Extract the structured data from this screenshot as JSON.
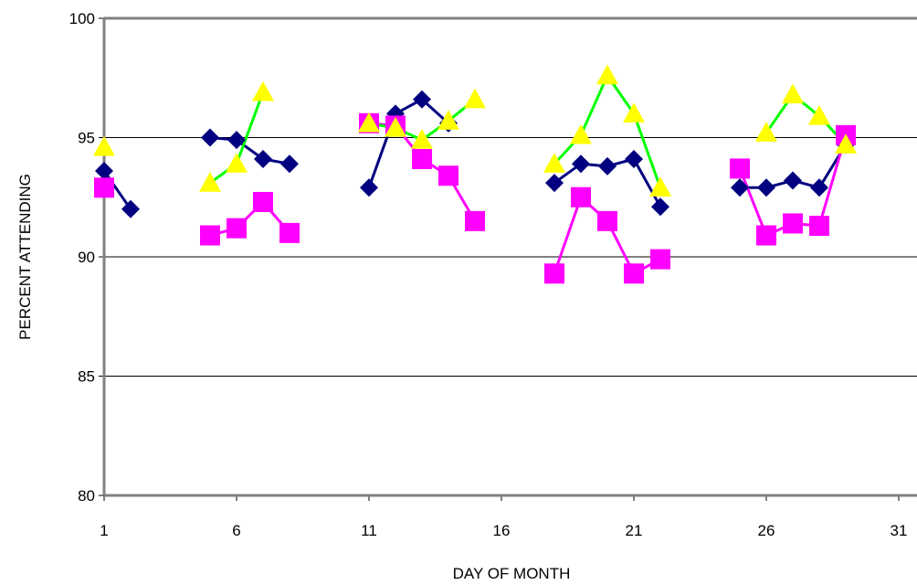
{
  "chart_data": {
    "type": "line",
    "title": "",
    "xlabel": "DAY OF MONTH",
    "ylabel": "PERCENT ATTENDING",
    "xlim": [
      1,
      31
    ],
    "ylim": [
      80,
      100
    ],
    "x_ticks": [
      "1",
      "6",
      "11",
      "16",
      "21",
      "26",
      "31"
    ],
    "y_ticks": [
      "80",
      "85",
      "90",
      "95",
      "100"
    ],
    "grid": "horizontal",
    "legend": "none",
    "series": [
      {
        "color": "#000080",
        "line_color": "#000080",
        "marker": "diamond",
        "segments": [
          [
            [
              1,
              93.6
            ],
            [
              2,
              92.0
            ]
          ],
          [
            [
              5,
              95.0
            ],
            [
              6,
              94.9
            ],
            [
              7,
              94.1
            ],
            [
              8,
              93.9
            ]
          ],
          [
            [
              11,
              92.9
            ],
            [
              12,
              96.0
            ],
            [
              13,
              96.6
            ],
            [
              14,
              95.6
            ]
          ],
          [
            [
              18,
              93.1
            ],
            [
              19,
              93.9
            ],
            [
              20,
              93.8
            ],
            [
              21,
              94.1
            ],
            [
              22,
              92.1
            ]
          ],
          [
            [
              25,
              92.9
            ],
            [
              26,
              92.9
            ],
            [
              27,
              93.2
            ],
            [
              28,
              92.9
            ],
            [
              29,
              94.7
            ]
          ]
        ]
      },
      {
        "color": "#ff00ff",
        "line_color": "#ff00ff",
        "marker": "square",
        "segments": [
          [
            [
              1,
              92.9
            ]
          ],
          [
            [
              5,
              90.9
            ],
            [
              6,
              91.2
            ],
            [
              7,
              92.3
            ],
            [
              8,
              91.0
            ]
          ],
          [
            [
              11,
              95.6
            ],
            [
              12,
              95.5
            ],
            [
              13,
              94.1
            ],
            [
              14,
              93.4
            ],
            [
              15,
              91.5
            ]
          ],
          [
            [
              18,
              89.3
            ],
            [
              19,
              92.5
            ],
            [
              20,
              91.5
            ],
            [
              21,
              89.3
            ],
            [
              22,
              89.9
            ]
          ],
          [
            [
              25,
              93.7
            ],
            [
              26,
              90.9
            ],
            [
              27,
              91.4
            ],
            [
              28,
              91.3
            ],
            [
              29,
              95.1
            ]
          ]
        ]
      },
      {
        "color": "#ffff00",
        "line_color": "#00ff00",
        "marker": "triangle",
        "segments": [
          [
            [
              1,
              94.6
            ]
          ],
          [
            [
              5,
              93.1
            ],
            [
              6,
              93.9
            ],
            [
              7,
              96.9
            ]
          ],
          [
            [
              11,
              95.6
            ],
            [
              12,
              95.4
            ],
            [
              13,
              94.9
            ],
            [
              14,
              95.7
            ],
            [
              15,
              96.6
            ]
          ],
          [
            [
              18,
              93.9
            ],
            [
              19,
              95.1
            ],
            [
              20,
              97.6
            ],
            [
              21,
              96.0
            ],
            [
              22,
              92.9
            ]
          ],
          [
            [
              26,
              95.2
            ],
            [
              27,
              96.8
            ],
            [
              28,
              95.9
            ],
            [
              29,
              94.7
            ]
          ]
        ]
      }
    ]
  }
}
